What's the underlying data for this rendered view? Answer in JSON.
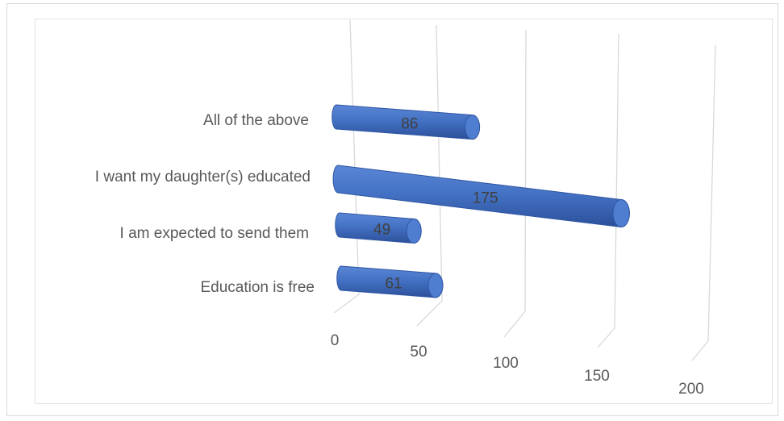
{
  "chart_data": {
    "type": "bar",
    "orientation": "horizontal",
    "style": "3d-cylinder",
    "categories": [
      "Education is free",
      "I am expected to send them",
      "I want my daughter(s) educated",
      "All of the above"
    ],
    "values": [
      61,
      49,
      175,
      86
    ],
    "title": "",
    "xlabel": "",
    "ylabel": "",
    "xlim": [
      0,
      200
    ],
    "xticks": [
      0,
      50,
      100,
      150,
      200
    ],
    "grid": true,
    "legend": "none",
    "data_labels": true,
    "colors": {
      "bar": "#4472C4",
      "bar_dark": "#2f56a3",
      "grid": "#d9d9d9",
      "text": "#595959"
    }
  }
}
